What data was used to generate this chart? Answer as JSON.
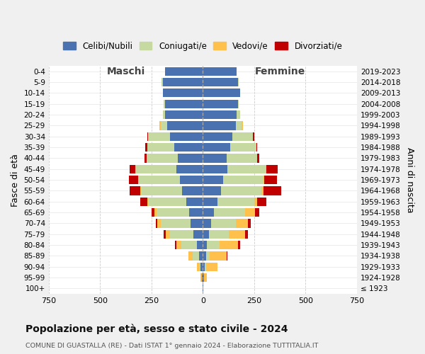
{
  "age_groups": [
    "0-4",
    "5-9",
    "10-14",
    "15-19",
    "20-24",
    "25-29",
    "30-34",
    "35-39",
    "40-44",
    "45-49",
    "50-54",
    "55-59",
    "60-64",
    "65-69",
    "70-74",
    "75-79",
    "80-84",
    "85-89",
    "90-94",
    "95-99",
    "100+"
  ],
  "birth_years": [
    "2019-2023",
    "2014-2018",
    "2009-2013",
    "2004-2008",
    "1999-2003",
    "1994-1998",
    "1989-1993",
    "1984-1988",
    "1979-1983",
    "1974-1978",
    "1969-1973",
    "1964-1968",
    "1959-1963",
    "1954-1958",
    "1949-1953",
    "1944-1948",
    "1939-1943",
    "1934-1938",
    "1929-1933",
    "1924-1928",
    "≤ 1923"
  ],
  "colors": {
    "celibi": "#4a72b0",
    "coniugati": "#c5d9a0",
    "vedovi": "#ffc04c",
    "divorziati": "#c00000"
  },
  "maschi": {
    "celibi": [
      185,
      195,
      195,
      185,
      185,
      175,
      160,
      140,
      120,
      130,
      110,
      100,
      80,
      65,
      60,
      45,
      30,
      20,
      10,
      5,
      2
    ],
    "coniugati": [
      0,
      5,
      0,
      5,
      10,
      30,
      105,
      130,
      155,
      195,
      200,
      200,
      185,
      160,
      145,
      115,
      75,
      30,
      5,
      0,
      0
    ],
    "vedovi": [
      0,
      0,
      0,
      0,
      0,
      5,
      0,
      0,
      0,
      5,
      5,
      5,
      5,
      10,
      15,
      20,
      25,
      20,
      15,
      5,
      0
    ],
    "divorziati": [
      0,
      0,
      0,
      0,
      0,
      0,
      5,
      10,
      10,
      25,
      45,
      50,
      35,
      15,
      10,
      10,
      5,
      0,
      0,
      0,
      0
    ]
  },
  "femmine": {
    "nubili": [
      165,
      170,
      180,
      170,
      165,
      160,
      145,
      135,
      115,
      120,
      100,
      90,
      70,
      55,
      40,
      30,
      20,
      15,
      10,
      5,
      2
    ],
    "coniugate": [
      0,
      5,
      0,
      5,
      15,
      30,
      100,
      125,
      150,
      185,
      195,
      195,
      180,
      150,
      120,
      95,
      60,
      20,
      5,
      0,
      0
    ],
    "vedove": [
      0,
      0,
      0,
      0,
      0,
      5,
      0,
      0,
      0,
      5,
      5,
      10,
      15,
      50,
      60,
      80,
      90,
      80,
      55,
      15,
      2
    ],
    "divorziate": [
      0,
      0,
      0,
      0,
      0,
      0,
      5,
      5,
      10,
      55,
      60,
      85,
      45,
      20,
      15,
      15,
      10,
      5,
      0,
      0,
      0
    ]
  },
  "xlim": 750,
  "title": "Popolazione per età, sesso e stato civile - 2024",
  "subtitle": "COMUNE DI GUASTALLA (RE) - Dati ISTAT 1° gennaio 2024 - Elaborazione TUTTITALIA.IT",
  "xlabel_left": "Maschi",
  "xlabel_right": "Femmine",
  "ylabel": "Fasce di età",
  "ylabel_right": "Anni di nascita",
  "legend_labels": [
    "Celibi/Nubili",
    "Coniugati/e",
    "Vedovi/e",
    "Divorziati/e"
  ],
  "background_color": "#f0f0f0",
  "plot_background": "#ffffff"
}
